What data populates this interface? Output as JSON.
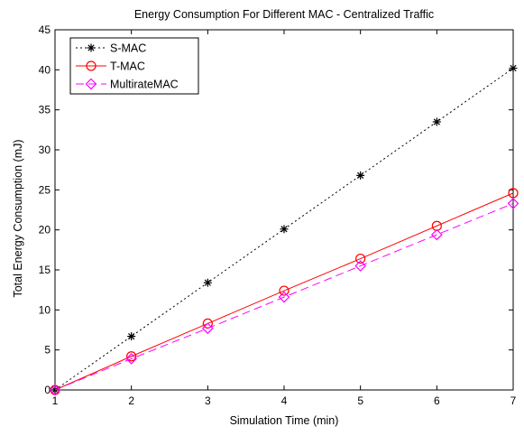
{
  "chart_data": {
    "type": "line",
    "title": "Energy Consumption For Different MAC - Centralized Traffic",
    "xlabel": "Simulation Time (min)",
    "ylabel": "Total Energy Consumption (mJ)",
    "xlim": [
      1,
      7
    ],
    "ylim": [
      0,
      45
    ],
    "xticks": [
      1,
      2,
      3,
      4,
      5,
      6,
      7
    ],
    "yticks": [
      0,
      5,
      10,
      15,
      20,
      25,
      30,
      35,
      40,
      45
    ],
    "grid": false,
    "legend_position": "top-left",
    "x": [
      1,
      2,
      3,
      4,
      5,
      6,
      7
    ],
    "series": [
      {
        "name": "S-MAC",
        "values": [
          0,
          6.7,
          13.4,
          20.1,
          26.8,
          33.5,
          40.2
        ],
        "color": "#000000",
        "line_style": "dotted",
        "marker": "star"
      },
      {
        "name": "T-MAC",
        "values": [
          0,
          4.2,
          8.3,
          12.4,
          16.4,
          20.5,
          24.6
        ],
        "color": "#ff0000",
        "line_style": "solid",
        "marker": "circle"
      },
      {
        "name": "MultirateMAC",
        "values": [
          0,
          3.9,
          7.7,
          11.6,
          15.5,
          19.4,
          23.3
        ],
        "color": "#ff00ff",
        "line_style": "dashed",
        "marker": "diamond"
      }
    ]
  }
}
